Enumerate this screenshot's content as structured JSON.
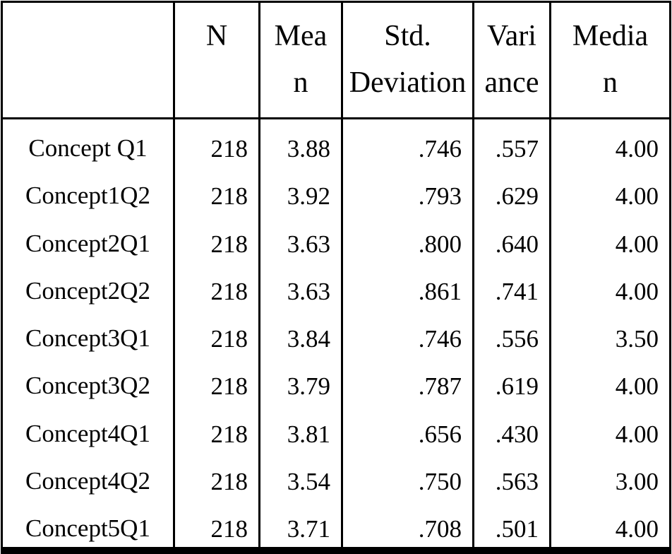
{
  "document": {
    "background_color": "#ffffff",
    "text_color": "#000000",
    "border_color": "#000000"
  },
  "table": {
    "name": "descriptive-statistics-table",
    "headers": {
      "label": "",
      "n": "N",
      "mean": [
        "Mea",
        "n"
      ],
      "std_deviation": [
        "Std.",
        "Deviation"
      ],
      "variance": [
        "Vari",
        "ance"
      ],
      "median": [
        "Media",
        "n"
      ]
    },
    "rows": [
      {
        "label": "Concept Q1",
        "n": "218",
        "mean": "3.88",
        "std": ".746",
        "variance": ".557",
        "median": "4.00"
      },
      {
        "label": "Concept1Q2",
        "n": "218",
        "mean": "3.92",
        "std": ".793",
        "variance": ".629",
        "median": "4.00"
      },
      {
        "label": "Concept2Q1",
        "n": "218",
        "mean": "3.63",
        "std": ".800",
        "variance": ".640",
        "median": "4.00"
      },
      {
        "label": "Concept2Q2",
        "n": "218",
        "mean": "3.63",
        "std": ".861",
        "variance": ".741",
        "median": "4.00"
      },
      {
        "label": "Concept3Q1",
        "n": "218",
        "mean": "3.84",
        "std": ".746",
        "variance": ".556",
        "median": "3.50"
      },
      {
        "label": "Concept3Q2",
        "n": "218",
        "mean": "3.79",
        "std": ".787",
        "variance": ".619",
        "median": "4.00"
      },
      {
        "label": "Concept4Q1",
        "n": "218",
        "mean": "3.81",
        "std": ".656",
        "variance": ".430",
        "median": "4.00"
      },
      {
        "label": "Concept4Q2",
        "n": "218",
        "mean": "3.54",
        "std": ".750",
        "variance": ".563",
        "median": "3.00"
      },
      {
        "label": "Concept5Q1",
        "n": "218",
        "mean": "3.71",
        "std": ".708",
        "variance": ".501",
        "median": "4.00"
      }
    ]
  }
}
